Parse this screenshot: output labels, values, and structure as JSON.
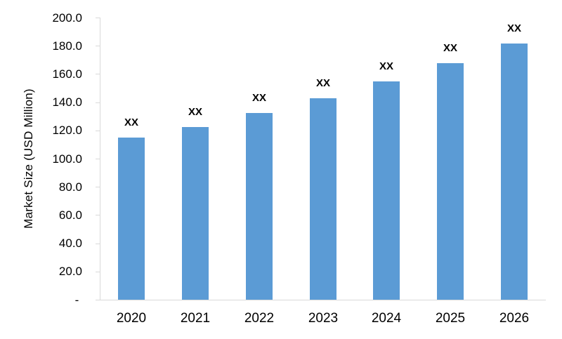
{
  "chart_data": {
    "type": "bar",
    "title": "",
    "ylabel": "Market Size (USD Million)",
    "xlabel": "",
    "categories": [
      "2020",
      "2021",
      "2022",
      "2023",
      "2024",
      "2025",
      "2026"
    ],
    "values": [
      115,
      122.5,
      132.5,
      143,
      154.5,
      167.5,
      181.5
    ],
    "bar_labels": [
      "XX",
      "XX",
      "XX",
      "XX",
      "XX",
      "XX",
      "XX"
    ],
    "y_ticks": [
      "200.0",
      "180.0",
      "160.0",
      "140.0",
      "120.0",
      "100.0",
      "80.0",
      "60.0",
      "40.0",
      "20.0",
      "-"
    ],
    "ylim": [
      0,
      200
    ],
    "grid": false,
    "legend": false,
    "bar_color": "#5B9BD5",
    "axis_color": "#D9D9D9",
    "text_color": "#000000"
  }
}
